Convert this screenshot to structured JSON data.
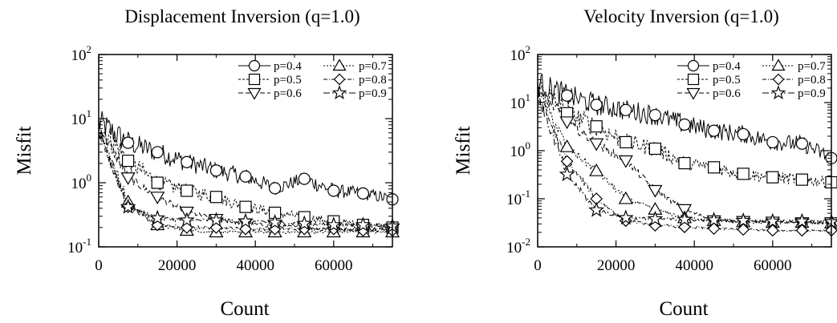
{
  "chart_data": [
    {
      "type": "line",
      "title": "Displacement Inversion (q=1.0)",
      "xlabel": "Count",
      "ylabel": "Misfit",
      "xlim": [
        0,
        75000
      ],
      "ylim": [
        0.1,
        100
      ],
      "yscale": "log",
      "x_ticks": [
        "0",
        "20000",
        "40000",
        "60000"
      ],
      "y_ticks": [
        {
          "base": "10",
          "exp": "2"
        },
        {
          "base": "10",
          "exp": "1"
        },
        {
          "base": "10",
          "exp": "0"
        },
        {
          "base": "10",
          "exp": "-1"
        }
      ],
      "legend_position": "top-right",
      "series": [
        {
          "name": "p=0.4",
          "marker": "circle",
          "x": [
            0,
            7500,
            15000,
            22500,
            30000,
            37500,
            45000,
            52500,
            60000,
            67500,
            75000
          ],
          "y": [
            9,
            4.2,
            3.0,
            2.1,
            1.55,
            1.25,
            0.82,
            1.15,
            0.75,
            0.68,
            0.55
          ]
        },
        {
          "name": "p=0.5",
          "marker": "square",
          "x": [
            0,
            7500,
            15000,
            22500,
            30000,
            37500,
            45000,
            52500,
            60000,
            67500,
            75000
          ],
          "y": [
            8,
            2.2,
            1.0,
            0.75,
            0.6,
            0.42,
            0.34,
            0.29,
            0.25,
            0.22,
            0.2
          ]
        },
        {
          "name": "p=0.6",
          "marker": "triangle-down",
          "x": [
            0,
            7500,
            15000,
            22500,
            30000,
            37500,
            45000,
            52500,
            60000,
            67500,
            75000
          ],
          "y": [
            8,
            1.2,
            0.6,
            0.35,
            0.27,
            0.23,
            0.21,
            0.2,
            0.19,
            0.19,
            0.19
          ]
        },
        {
          "name": "p=0.7",
          "marker": "triangle-up",
          "x": [
            0,
            7500,
            15000,
            22500,
            30000,
            37500,
            45000,
            52500,
            60000,
            67500,
            75000
          ],
          "y": [
            7,
            0.5,
            0.22,
            0.18,
            0.17,
            0.17,
            0.17,
            0.17,
            0.17,
            0.17,
            0.17
          ]
        },
        {
          "name": "p=0.8",
          "marker": "diamond",
          "x": [
            0,
            7500,
            15000,
            22500,
            30000,
            37500,
            45000,
            52500,
            60000,
            67500,
            75000
          ],
          "y": [
            7,
            0.42,
            0.22,
            0.2,
            0.2,
            0.19,
            0.19,
            0.19,
            0.19,
            0.18,
            0.18
          ]
        },
        {
          "name": "p=0.9",
          "marker": "star",
          "x": [
            0,
            7500,
            15000,
            22500,
            30000,
            37500,
            45000,
            52500,
            60000,
            67500,
            75000
          ],
          "y": [
            6,
            0.42,
            0.28,
            0.26,
            0.26,
            0.25,
            0.24,
            0.23,
            0.22,
            0.22,
            0.21
          ]
        }
      ]
    },
    {
      "type": "line",
      "title": "Velocity Inversion (q=1.0)",
      "xlabel": "Count",
      "ylabel": "Misfit",
      "xlim": [
        0,
        75000
      ],
      "ylim": [
        0.01,
        100
      ],
      "yscale": "log",
      "x_ticks": [
        "0",
        "20000",
        "40000",
        "60000"
      ],
      "y_ticks": [
        {
          "base": "10",
          "exp": "2"
        },
        {
          "base": "10",
          "exp": "1"
        },
        {
          "base": "10",
          "exp": "0"
        },
        {
          "base": "10",
          "exp": "-1"
        },
        {
          "base": "10",
          "exp": "-2"
        }
      ],
      "legend_position": "top-right",
      "series": [
        {
          "name": "p=0.4",
          "marker": "circle",
          "x": [
            0,
            7500,
            15000,
            22500,
            30000,
            37500,
            45000,
            52500,
            60000,
            67500,
            75000
          ],
          "y": [
            25,
            14,
            9,
            7,
            5.5,
            3.5,
            2.6,
            2.2,
            1.5,
            1.4,
            0.7
          ]
        },
        {
          "name": "p=0.5",
          "marker": "square",
          "x": [
            0,
            7500,
            15000,
            22500,
            30000,
            37500,
            45000,
            52500,
            60000,
            67500,
            75000
          ],
          "y": [
            22,
            6,
            3.2,
            1.5,
            1.1,
            0.55,
            0.45,
            0.33,
            0.28,
            0.25,
            0.22
          ]
        },
        {
          "name": "p=0.6",
          "marker": "triangle-down",
          "x": [
            0,
            7500,
            15000,
            22500,
            30000,
            37500,
            45000,
            52500,
            60000,
            67500,
            75000
          ],
          "y": [
            20,
            4,
            1.4,
            0.62,
            0.15,
            0.06,
            0.035,
            0.034,
            0.033,
            0.032,
            0.032
          ]
        },
        {
          "name": "p=0.7",
          "marker": "triangle-up",
          "x": [
            0,
            7500,
            15000,
            22500,
            30000,
            37500,
            45000,
            52500,
            60000,
            67500,
            75000
          ],
          "y": [
            18,
            1.2,
            0.38,
            0.1,
            0.06,
            0.04,
            0.035,
            0.033,
            0.032,
            0.032,
            0.031
          ]
        },
        {
          "name": "p=0.8",
          "marker": "diamond",
          "x": [
            0,
            7500,
            15000,
            22500,
            30000,
            37500,
            45000,
            52500,
            60000,
            67500,
            75000
          ],
          "y": [
            16,
            0.6,
            0.1,
            0.035,
            0.028,
            0.026,
            0.024,
            0.023,
            0.022,
            0.022,
            0.022
          ]
        },
        {
          "name": "p=0.9",
          "marker": "star",
          "x": [
            0,
            7500,
            15000,
            22500,
            30000,
            37500,
            45000,
            52500,
            60000,
            67500,
            75000
          ],
          "y": [
            14,
            0.32,
            0.058,
            0.04,
            0.038,
            0.037,
            0.036,
            0.035,
            0.034,
            0.034,
            0.033
          ]
        }
      ]
    }
  ]
}
